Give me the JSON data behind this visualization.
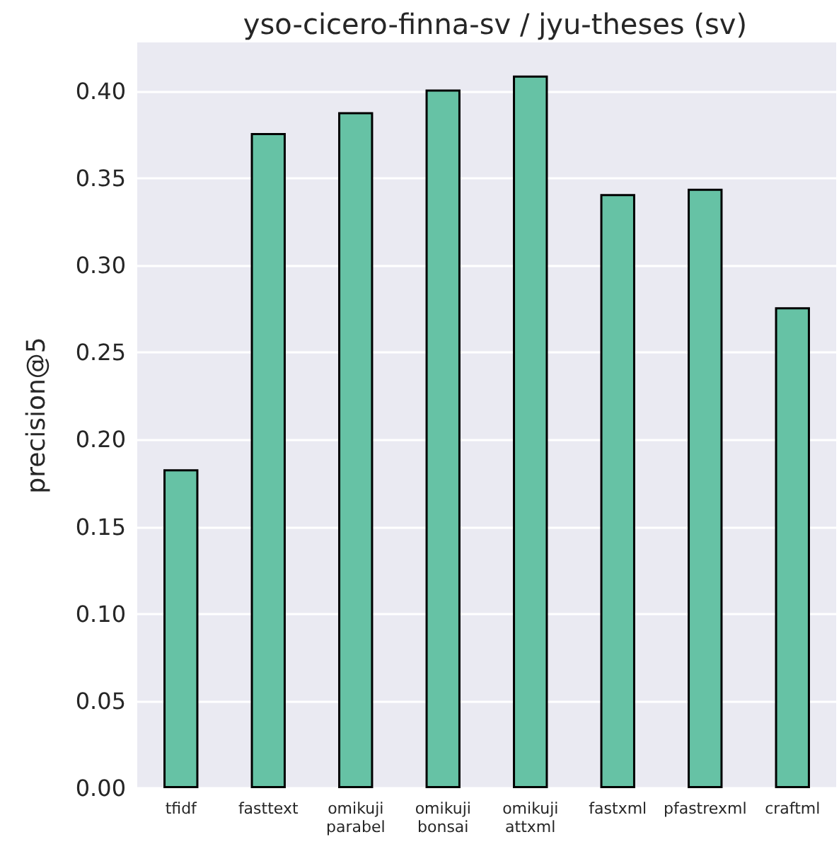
{
  "chart_data": {
    "type": "bar",
    "title": "yso-cicero-finna-sv / jyu-theses (sv)",
    "ylabel": "precision@5",
    "categories": [
      "tfidf",
      "fasttext",
      "omikuji\nparabel",
      "omikuji\nbonsai",
      "omikuji\nattxml",
      "fastxml",
      "pfastrexml",
      "craftml"
    ],
    "values": [
      0.183,
      0.376,
      0.388,
      0.401,
      0.409,
      0.341,
      0.344,
      0.276
    ],
    "color": "#66c2a5",
    "ylim": [
      0,
      0.428
    ],
    "yticks": [
      {
        "value": 0,
        "label": "0.00"
      },
      0.05,
      {
        "value": 0.1,
        "label": "0.10"
      },
      0.15,
      {
        "value": 0.2,
        "label": "0.20"
      },
      0.25,
      {
        "value": 0.3,
        "label": "0.30"
      },
      0.35,
      {
        "value": 0.4,
        "label": "0.40"
      }
    ],
    "grid": "y"
  }
}
